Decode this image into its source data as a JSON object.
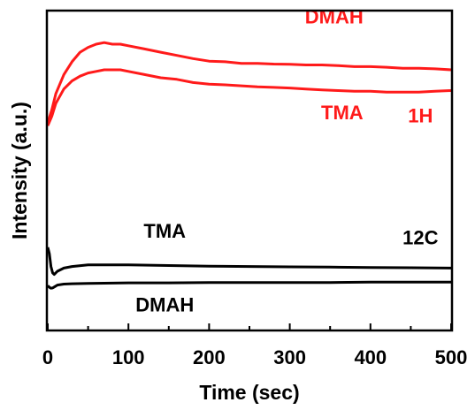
{
  "chart_data": {
    "type": "line",
    "xlabel": "Time (sec)",
    "ylabel": "Intensity (a.u.)",
    "xlim": [
      0,
      500
    ],
    "ylim": [
      0,
      100
    ],
    "x_ticks": [
      "0",
      "100",
      "200",
      "300",
      "400",
      "500"
    ],
    "y_ticks_labeled": false,
    "grid": false,
    "legend": "none",
    "colors": {
      "red": "#ff1a1a",
      "black": "#000000"
    },
    "annotations": [
      {
        "text": "DMAH",
        "color": "#ff1a1a",
        "x": 355,
        "y": 96
      },
      {
        "text": "TMA",
        "color": "#ff1a1a",
        "x": 365,
        "y": 66
      },
      {
        "text": "1H",
        "color": "#ff1a1a",
        "x": 462,
        "y": 65
      },
      {
        "text": "TMA",
        "color": "#000000",
        "x": 145,
        "y": 29
      },
      {
        "text": "12C",
        "color": "#000000",
        "x": 462,
        "y": 27
      },
      {
        "text": "DMAH",
        "color": "#000000",
        "x": 145,
        "y": 6
      }
    ],
    "series": [
      {
        "color": "#ff1a1a",
        "x": [
          0,
          5,
          10,
          20,
          30,
          40,
          50,
          60,
          70,
          80,
          90,
          100,
          120,
          140,
          160,
          180,
          200,
          220,
          240,
          260,
          280,
          300,
          320,
          340,
          360,
          380,
          400,
          420,
          440,
          460,
          480,
          500
        ],
        "y": [
          65,
          69,
          74,
          80,
          84,
          87,
          88.5,
          89.5,
          90,
          89.5,
          89.5,
          89,
          88,
          87,
          86,
          85,
          84.2,
          84,
          83.5,
          83.5,
          83.3,
          83.2,
          83,
          83,
          82.8,
          82.5,
          82.5,
          82.3,
          82,
          82,
          81.8,
          81.5
        ]
      },
      {
        "color": "#ff1a1a",
        "x": [
          0,
          5,
          10,
          20,
          30,
          40,
          50,
          60,
          70,
          80,
          90,
          100,
          120,
          140,
          160,
          180,
          200,
          220,
          240,
          260,
          280,
          300,
          320,
          340,
          360,
          380,
          400,
          420,
          440,
          460,
          480,
          500
        ],
        "y": [
          64,
          67,
          71,
          75.5,
          78,
          79.5,
          80.5,
          81,
          81.5,
          81.5,
          81.5,
          81,
          80,
          79,
          78.5,
          77.5,
          77,
          76.8,
          76.5,
          76.2,
          76,
          75.8,
          75.5,
          75.2,
          75,
          74.8,
          74.8,
          74.5,
          74.5,
          74.5,
          74.8,
          75
        ]
      },
      {
        "color": "#000000",
        "x": [
          0,
          2,
          4,
          6,
          8,
          12,
          20,
          30,
          50,
          80,
          100,
          150,
          200,
          250,
          300,
          350,
          400,
          450,
          500
        ],
        "y": [
          26,
          24,
          20,
          18,
          17.5,
          18.5,
          19.5,
          20,
          20.5,
          20.5,
          20.5,
          20.3,
          20.1,
          20,
          19.9,
          19.8,
          19.7,
          19.6,
          19.5
        ]
      },
      {
        "color": "#000000",
        "x": [
          0,
          2,
          4,
          6,
          8,
          12,
          20,
          30,
          50,
          80,
          100,
          150,
          200,
          250,
          300,
          350,
          400,
          450,
          500
        ],
        "y": [
          14,
          13.5,
          13.2,
          13.3,
          13.6,
          14.2,
          14.5,
          14.6,
          14.7,
          14.8,
          14.9,
          14.9,
          15,
          15,
          15,
          15,
          15.1,
          15.1,
          15.1
        ]
      }
    ]
  }
}
